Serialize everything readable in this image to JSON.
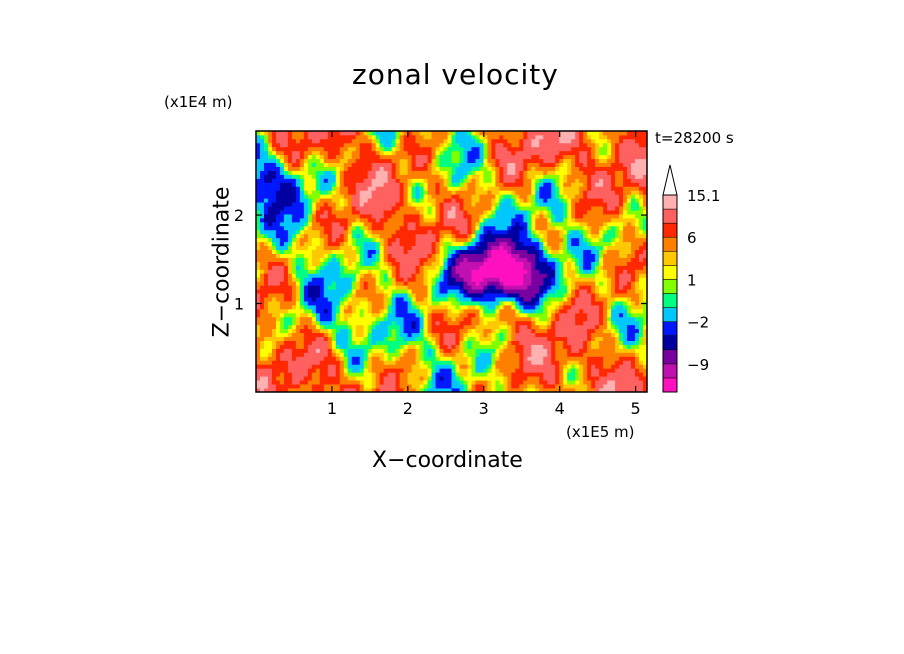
{
  "chart_data": {
    "type": "heatmap",
    "title": "zonal velocity",
    "xlabel": "X−coordinate",
    "ylabel": "Z−coordinate",
    "x_scale_label": "(x1E5 m)",
    "y_scale_label": "(x1E4 m)",
    "time_label": "t=28200 s",
    "xlim": [
      0,
      5.15
    ],
    "ylim": [
      0,
      2.95
    ],
    "x_ticks": [
      1,
      2,
      3,
      4,
      5
    ],
    "y_ticks": [
      1,
      2
    ],
    "colorbar": {
      "levels": [
        -15,
        -12,
        -9,
        -6,
        -4,
        -2,
        -1,
        0,
        1,
        2,
        4,
        6,
        9,
        12,
        15.1
      ],
      "colors": [
        "#ff10c0",
        "#c010b0",
        "#7800a0",
        "#0000a0",
        "#0018ff",
        "#00c8ff",
        "#00ff80",
        "#80ff00",
        "#ffff00",
        "#ffc800",
        "#ff8000",
        "#ff2800",
        "#ff6060",
        "#ffb0b0",
        "#ffffff"
      ],
      "tick_labels": [
        "15.1",
        "6",
        "1",
        "−2",
        "−9"
      ],
      "tick_values": [
        15.1,
        6,
        1,
        -2,
        -9
      ]
    },
    "description_features": [
      {
        "x": 0.9,
        "z": 0.8,
        "u": -1.0
      },
      {
        "x": 3.0,
        "z": 1.35,
        "u": -12.0
      },
      {
        "x": 3.4,
        "z": 1.35,
        "u": -13.0
      },
      {
        "x": 4.4,
        "z": 1.3,
        "u": 6.0
      },
      {
        "x": 3.5,
        "z": 2.7,
        "u": 7.0
      },
      {
        "x": 0.3,
        "z": 2.4,
        "u": -6.0
      }
    ]
  }
}
